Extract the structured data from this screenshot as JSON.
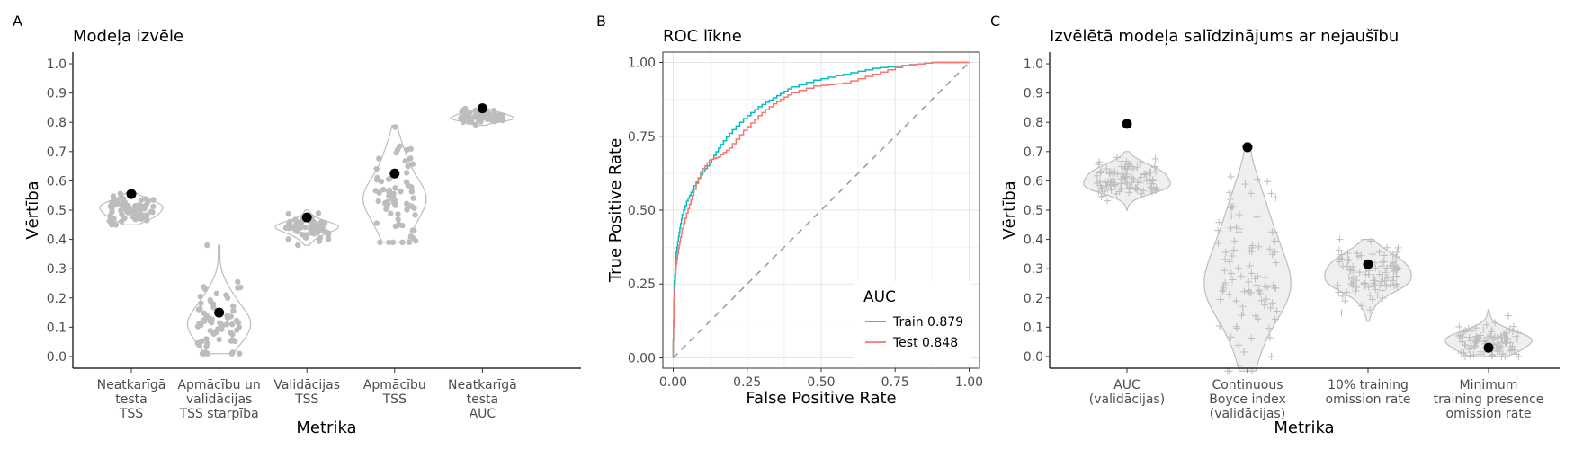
{
  "chart_data": [
    {
      "panel_label": "A",
      "type": "scatter",
      "title": "Modeļa izvēle",
      "xlabel": "Metrika",
      "ylabel": "Vērtība",
      "ylim": [
        -0.04,
        1.04
      ],
      "yticks": [
        "0.0",
        "0.1",
        "0.2",
        "0.3",
        "0.4",
        "0.5",
        "0.6",
        "0.7",
        "0.8",
        "0.9",
        "1.0"
      ],
      "categories": [
        {
          "label": [
            "Neatkarīgā",
            "testa",
            "TSS"
          ],
          "selected": 0.555,
          "distribution": {
            "center": 0.5,
            "spread": 0.025,
            "min": 0.45,
            "max": 0.56,
            "n": 70
          }
        },
        {
          "label": [
            "Apmācību un",
            "validācijas",
            "TSS starpība"
          ],
          "selected": 0.15,
          "distribution": {
            "center": 0.12,
            "spread": 0.08,
            "min": 0.01,
            "max": 0.38,
            "n": 70
          }
        },
        {
          "label": [
            "Validācijas",
            "TSS"
          ],
          "selected": 0.475,
          "distribution": {
            "center": 0.44,
            "spread": 0.025,
            "min": 0.38,
            "max": 0.5,
            "n": 70
          }
        },
        {
          "label": [
            "Apmācību",
            "TSS"
          ],
          "selected": 0.625,
          "distribution": {
            "center": 0.55,
            "spread": 0.1,
            "min": 0.39,
            "max": 0.79,
            "n": 70
          }
        },
        {
          "label": [
            "Neatkarīgā",
            "testa",
            "AUC"
          ],
          "selected": 0.848,
          "distribution": {
            "center": 0.82,
            "spread": 0.012,
            "min": 0.79,
            "max": 0.85,
            "n": 70
          }
        }
      ]
    },
    {
      "panel_label": "B",
      "type": "line",
      "title": "ROC līkne",
      "xlabel": "False Positive Rate",
      "ylabel": "True Positive Rate",
      "xlim": [
        0,
        1
      ],
      "ylim": [
        0,
        1
      ],
      "xticks": [
        "0.00",
        "0.25",
        "0.50",
        "0.75",
        "1.00"
      ],
      "yticks": [
        "0.00",
        "0.25",
        "0.50",
        "0.75",
        "1.00"
      ],
      "legend": {
        "title": "AUC",
        "position": "bottom-right"
      },
      "series": [
        {
          "name": "Train 0.879",
          "color": "#00BFC4",
          "x": [
            0,
            0.005,
            0.01,
            0.02,
            0.03,
            0.05,
            0.07,
            0.1,
            0.13,
            0.16,
            0.2,
            0.25,
            0.3,
            0.35,
            0.4,
            0.5,
            0.6,
            0.7,
            0.8,
            0.9,
            1.0
          ],
          "y": [
            0,
            0.26,
            0.34,
            0.41,
            0.47,
            0.53,
            0.57,
            0.62,
            0.66,
            0.71,
            0.76,
            0.81,
            0.85,
            0.88,
            0.91,
            0.94,
            0.96,
            0.98,
            0.99,
            1.0,
            1.0
          ]
        },
        {
          "name": "Test 0.848",
          "color": "#F8766D",
          "x": [
            0,
            0.005,
            0.01,
            0.02,
            0.03,
            0.05,
            0.07,
            0.1,
            0.13,
            0.16,
            0.2,
            0.25,
            0.3,
            0.35,
            0.4,
            0.5,
            0.6,
            0.7,
            0.8,
            0.9,
            1.0
          ],
          "y": [
            0,
            0.22,
            0.3,
            0.37,
            0.42,
            0.49,
            0.55,
            0.63,
            0.67,
            0.68,
            0.71,
            0.77,
            0.82,
            0.86,
            0.89,
            0.92,
            0.93,
            0.96,
            0.99,
            1.0,
            1.0
          ]
        }
      ],
      "reference_line": {
        "style": "dashed",
        "from": [
          0,
          0
        ],
        "to": [
          1,
          1
        ]
      }
    },
    {
      "panel_label": "C",
      "type": "scatter",
      "title": "Izvēlētā modeļa salīdzinājums ar nejaušību",
      "xlabel": "Metrika",
      "ylabel": "Vērtība",
      "ylim": [
        -0.04,
        1.04
      ],
      "yticks": [
        "0.0",
        "0.1",
        "0.2",
        "0.3",
        "0.4",
        "0.5",
        "0.6",
        "0.7",
        "0.8",
        "0.9",
        "1.0"
      ],
      "categories": [
        {
          "label": [
            "AUC",
            "(validācijas)"
          ],
          "selected": 0.795,
          "distribution": {
            "center": 0.6,
            "spread": 0.035,
            "min": 0.5,
            "max": 0.7,
            "n": 100
          }
        },
        {
          "label": [
            "Continuous",
            "Boyce index",
            "(validācijas)"
          ],
          "selected": 0.715,
          "distribution": {
            "center": 0.3,
            "spread": 0.16,
            "min": -0.05,
            "max": 0.73,
            "n": 100
          }
        },
        {
          "label": [
            "10% training",
            "omission rate"
          ],
          "selected": 0.315,
          "distribution": {
            "center": 0.28,
            "spread": 0.05,
            "min": 0.12,
            "max": 0.4,
            "n": 100
          }
        },
        {
          "label": [
            "Minimum",
            "training presence",
            "omission rate"
          ],
          "selected": 0.03,
          "distribution": {
            "center": 0.05,
            "spread": 0.03,
            "min": 0.0,
            "max": 0.16,
            "n": 100
          }
        }
      ]
    }
  ]
}
